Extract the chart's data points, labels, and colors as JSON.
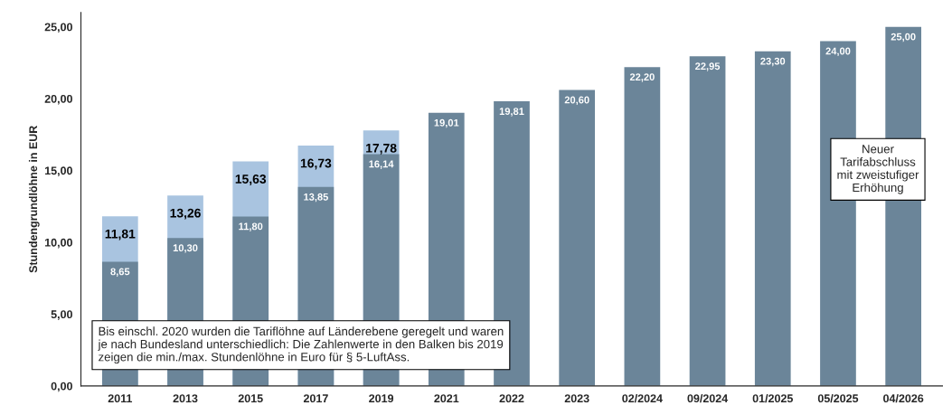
{
  "chart_data": {
    "type": "bar",
    "ylabel": "Stundengrundlöhne in EUR",
    "categories": [
      "2011",
      "2013",
      "2015",
      "2017",
      "2019",
      "2021",
      "2022",
      "2023",
      "02/2024",
      "09/2024",
      "01/2025",
      "05/2025",
      "04/2026"
    ],
    "series": [
      {
        "color": "#6b8599",
        "values": [
          8.65,
          10.3,
          11.8,
          13.85,
          16.14,
          19.01,
          19.81,
          20.6,
          22.2,
          22.95,
          23.3,
          24.0,
          25.0
        ],
        "value_labels": [
          "8,65",
          "10,30",
          "11,80",
          "13,85",
          "16,14",
          "19,01",
          "19,81",
          "20,60",
          "22,20",
          "22,95",
          "23,30",
          "24,00",
          "25,00"
        ]
      },
      {
        "color": "#a9c4e0",
        "values": [
          11.81,
          13.26,
          15.63,
          16.73,
          17.78,
          null,
          null,
          null,
          null,
          null,
          null,
          null,
          null
        ],
        "value_labels": [
          "11,81",
          "13,26",
          "15,63",
          "16,73",
          "17,78",
          null,
          null,
          null,
          null,
          null,
          null,
          null,
          null
        ]
      }
    ],
    "ylim": [
      0,
      26
    ],
    "yticks": [
      {
        "value": 0,
        "label": "0,00"
      },
      {
        "value": 5,
        "label": "5,00"
      },
      {
        "value": 10,
        "label": "10,00"
      },
      {
        "value": 15,
        "label": "15,00"
      },
      {
        "value": 20,
        "label": "20,00"
      },
      {
        "value": 25,
        "label": "25,00"
      }
    ],
    "grid": false,
    "legend": false,
    "annotations": [
      "Bis einschl. 2020 wurden die Tariflöhne auf Länderebene geregelt und waren je nach Bundesland unterschiedlich: Die Zahlenwerte in den Balken bis 2019 zeigen die min./max. Stundenlöhne in Euro für § 5-LuftAss.",
      "Neuer\nTarifabschluss\nmit zweistufiger\nErhöhung"
    ]
  }
}
